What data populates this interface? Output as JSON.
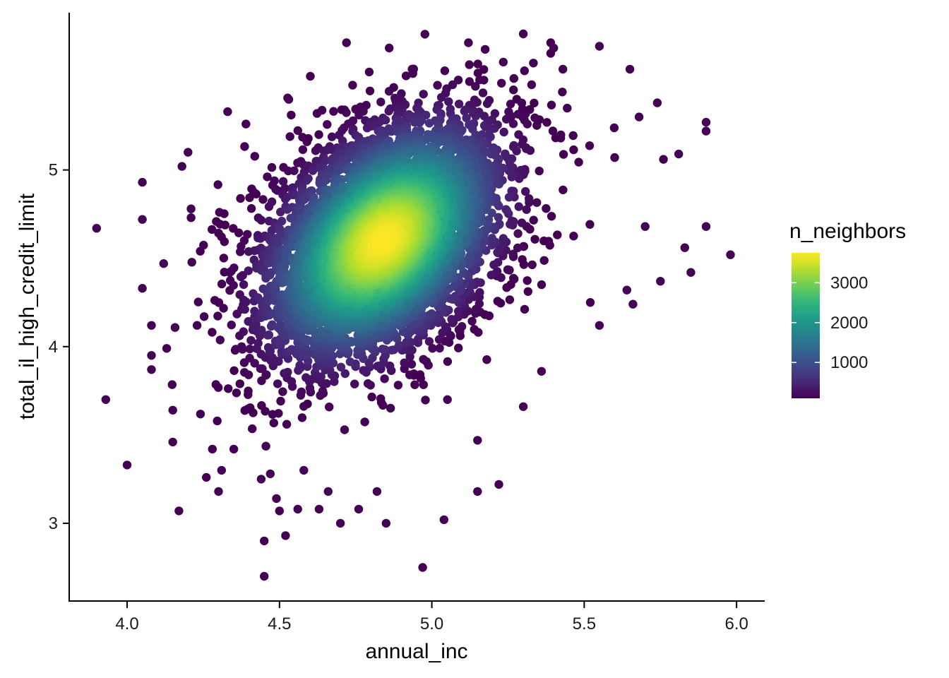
{
  "chart_data": {
    "type": "scatter",
    "title": "",
    "xlabel": "annual_inc",
    "ylabel": "total_il_high_credit_limit",
    "xlim": [
      3.81,
      6.09
    ],
    "ylim": [
      2.56,
      5.89
    ],
    "x_ticks": [
      4.0,
      4.5,
      5.0,
      5.5,
      6.0
    ],
    "x_tick_labels": [
      "4.0",
      "4.5",
      "5.0",
      "5.5",
      "6.0"
    ],
    "y_ticks": [
      3,
      4,
      5
    ],
    "y_tick_labels": [
      "3",
      "4",
      "5"
    ],
    "grid": false,
    "legend": {
      "title": "n_neighbors",
      "position": "right",
      "type": "colorbar",
      "palette": "viridis",
      "colors": [
        "#440154",
        "#482878",
        "#3e4989",
        "#31688e",
        "#26828e",
        "#1f9e89",
        "#35b779",
        "#6ece58",
        "#b5de2b",
        "#fde725"
      ],
      "range": [
        100,
        3750
      ],
      "ticks": [
        1000,
        2000,
        3000
      ],
      "tick_labels": [
        "1000",
        "2000",
        "3000"
      ]
    },
    "distribution": {
      "description": "dense bivariate point cloud colored by neighbor count",
      "center": [
        4.84,
        4.6
      ],
      "sd": [
        0.2,
        0.35
      ],
      "correlation": 0.42,
      "n_points": 5200
    },
    "outlier_points": [
      {
        "x": 3.9,
        "y": 4.67
      },
      {
        "x": 3.93,
        "y": 3.7
      },
      {
        "x": 4.0,
        "y": 3.33
      },
      {
        "x": 4.05,
        "y": 4.93
      },
      {
        "x": 4.05,
        "y": 4.72
      },
      {
        "x": 4.05,
        "y": 4.33
      },
      {
        "x": 4.08,
        "y": 4.12
      },
      {
        "x": 4.08,
        "y": 3.95
      },
      {
        "x": 4.08,
        "y": 3.87
      },
      {
        "x": 4.12,
        "y": 4.47
      },
      {
        "x": 4.13,
        "y": 3.99
      },
      {
        "x": 4.15,
        "y": 3.64
      },
      {
        "x": 4.15,
        "y": 3.46
      },
      {
        "x": 4.17,
        "y": 3.07
      },
      {
        "x": 4.18,
        "y": 5.02
      },
      {
        "x": 4.2,
        "y": 5.1
      },
      {
        "x": 4.21,
        "y": 4.78
      },
      {
        "x": 4.21,
        "y": 4.73
      },
      {
        "x": 4.24,
        "y": 4.54
      },
      {
        "x": 4.26,
        "y": 3.26
      },
      {
        "x": 4.28,
        "y": 3.42
      },
      {
        "x": 4.3,
        "y": 3.18
      },
      {
        "x": 4.31,
        "y": 3.3
      },
      {
        "x": 4.33,
        "y": 5.33
      },
      {
        "x": 4.35,
        "y": 3.42
      },
      {
        "x": 4.39,
        "y": 5.26
      },
      {
        "x": 4.44,
        "y": 3.25
      },
      {
        "x": 4.45,
        "y": 2.9
      },
      {
        "x": 4.45,
        "y": 2.7
      },
      {
        "x": 4.47,
        "y": 3.28
      },
      {
        "x": 4.49,
        "y": 3.14
      },
      {
        "x": 4.5,
        "y": 3.07
      },
      {
        "x": 4.52,
        "y": 2.93
      },
      {
        "x": 4.56,
        "y": 3.08
      },
      {
        "x": 4.58,
        "y": 3.3
      },
      {
        "x": 4.63,
        "y": 3.08
      },
      {
        "x": 4.66,
        "y": 3.18
      },
      {
        "x": 4.7,
        "y": 3.0
      },
      {
        "x": 4.72,
        "y": 5.72
      },
      {
        "x": 4.74,
        "y": 5.48
      },
      {
        "x": 4.76,
        "y": 3.08
      },
      {
        "x": 4.82,
        "y": 3.18
      },
      {
        "x": 4.85,
        "y": 3.0
      },
      {
        "x": 4.86,
        "y": 5.69
      },
      {
        "x": 4.97,
        "y": 2.75
      },
      {
        "x": 5.04,
        "y": 3.02
      },
      {
        "x": 5.12,
        "y": 5.72
      },
      {
        "x": 5.15,
        "y": 3.47
      },
      {
        "x": 5.15,
        "y": 3.18
      },
      {
        "x": 5.22,
        "y": 3.22
      },
      {
        "x": 5.3,
        "y": 5.77
      },
      {
        "x": 5.3,
        "y": 3.66
      },
      {
        "x": 5.36,
        "y": 3.86
      },
      {
        "x": 5.39,
        "y": 5.72
      },
      {
        "x": 5.39,
        "y": 5.66
      },
      {
        "x": 5.4,
        "y": 5.69
      },
      {
        "x": 5.43,
        "y": 5.57
      },
      {
        "x": 5.55,
        "y": 5.7
      },
      {
        "x": 5.52,
        "y": 4.25
      },
      {
        "x": 5.55,
        "y": 4.12
      },
      {
        "x": 5.6,
        "y": 5.07
      },
      {
        "x": 5.64,
        "y": 4.32
      },
      {
        "x": 5.65,
        "y": 5.57
      },
      {
        "x": 5.66,
        "y": 4.24
      },
      {
        "x": 5.68,
        "y": 5.3
      },
      {
        "x": 5.7,
        "y": 4.68
      },
      {
        "x": 5.74,
        "y": 5.38
      },
      {
        "x": 5.75,
        "y": 4.37
      },
      {
        "x": 5.76,
        "y": 5.06
      },
      {
        "x": 5.81,
        "y": 5.09
      },
      {
        "x": 5.83,
        "y": 4.56
      },
      {
        "x": 5.85,
        "y": 4.42
      },
      {
        "x": 5.9,
        "y": 5.27
      },
      {
        "x": 5.9,
        "y": 5.22
      },
      {
        "x": 5.9,
        "y": 4.68
      },
      {
        "x": 5.98,
        "y": 4.52
      }
    ]
  }
}
